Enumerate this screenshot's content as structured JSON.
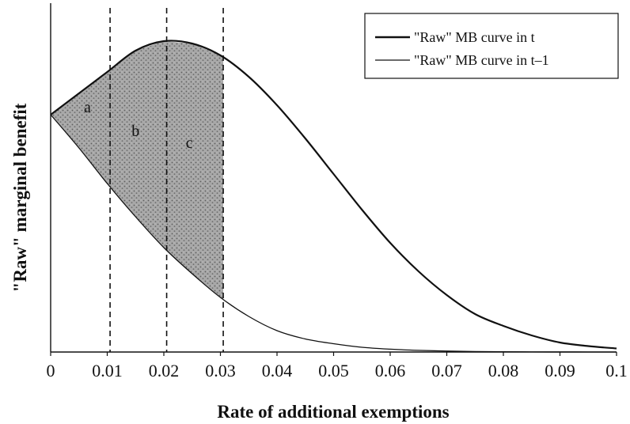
{
  "chart_data": {
    "type": "line",
    "title": "",
    "xlabel": "Rate of additional exemptions",
    "ylabel": "\"Raw\" marginal benefit",
    "xlim": [
      0,
      0.1
    ],
    "ylim": [
      0,
      1.45
    ],
    "x_ticks": [
      "0",
      "0.01",
      "0.02",
      "0.03",
      "0.04",
      "0.05",
      "0.06",
      "0.07",
      "0.08",
      "0.09",
      "0.1"
    ],
    "y_ticks_shown": false,
    "grid": false,
    "legend_position": "top-right",
    "series": [
      {
        "name": "\"Raw\" MB curve in t",
        "x": [
          0,
          0.005,
          0.01,
          0.015,
          0.02,
          0.025,
          0.03,
          0.035,
          0.04,
          0.045,
          0.05,
          0.055,
          0.06,
          0.065,
          0.07,
          0.075,
          0.08,
          0.085,
          0.09,
          0.095,
          0.1
        ],
        "y": [
          1.0,
          1.09,
          1.18,
          1.27,
          1.31,
          1.3,
          1.25,
          1.16,
          1.04,
          0.9,
          0.75,
          0.6,
          0.46,
          0.34,
          0.24,
          0.16,
          0.11,
          0.07,
          0.04,
          0.025,
          0.015
        ]
      },
      {
        "name": "\"Raw\" MB curve in t–1",
        "x": [
          0,
          0.005,
          0.01,
          0.015,
          0.02,
          0.025,
          0.03,
          0.035,
          0.04,
          0.045,
          0.05,
          0.055,
          0.06,
          0.065,
          0.07,
          0.075,
          0.08,
          0.085,
          0.09,
          0.095,
          0.1
        ],
        "y": [
          1.0,
          0.86,
          0.71,
          0.57,
          0.44,
          0.33,
          0.23,
          0.15,
          0.09,
          0.055,
          0.035,
          0.02,
          0.012,
          0.007,
          0.004,
          0.002,
          0.001,
          0.0005,
          0.0002,
          0.0001,
          0.0
        ]
      }
    ],
    "vertical_lines": [
      0.0105,
      0.0205,
      0.0305
    ],
    "shaded_region": {
      "x_from": 0,
      "x_to": 0.0305
    },
    "region_labels": [
      {
        "text": "a",
        "x": 0.0065,
        "y": 1.01
      },
      {
        "text": "b",
        "x": 0.015,
        "y": 0.91
      },
      {
        "text": "c",
        "x": 0.0245,
        "y": 0.86
      }
    ],
    "colors": {
      "line": "#111111",
      "shade": "#8c8c8c"
    }
  }
}
